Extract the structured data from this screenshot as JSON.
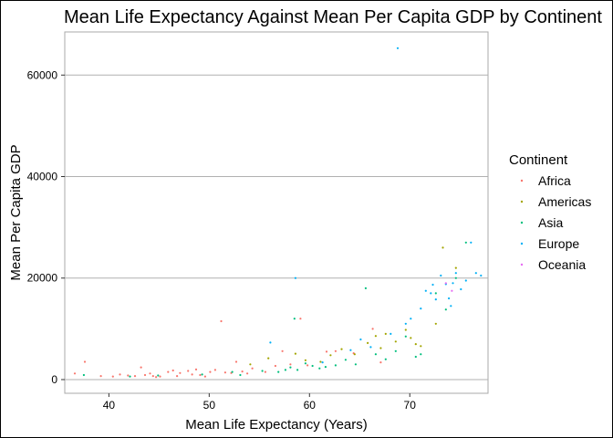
{
  "chart_data": {
    "type": "scatter",
    "title": "Mean Life Expectancy Against Mean Per Capita GDP by Continent",
    "xlabel": "Mean Life Expectancy (Years)",
    "ylabel": "Mean Per Capita GDP",
    "xlim": [
      35.6,
      77.8
    ],
    "ylim": [
      -2700,
      68500
    ],
    "x_ticks": [
      40,
      50,
      60,
      70
    ],
    "y_ticks": [
      0,
      20000,
      40000,
      60000
    ],
    "x_tick_labels": [
      "40",
      "50",
      "60",
      "70"
    ],
    "y_tick_labels": [
      "0",
      "20000",
      "40000",
      "60000"
    ],
    "grid": "horizontal",
    "legend": {
      "title": "Continent",
      "position": "right"
    },
    "series": [
      {
        "name": "Africa",
        "color": "#F8766D",
        "points": [
          [
            36.6,
            1200
          ],
          [
            37.6,
            3500
          ],
          [
            39.2,
            700
          ],
          [
            40.4,
            600
          ],
          [
            41.1,
            1000
          ],
          [
            41.9,
            800
          ],
          [
            42.6,
            700
          ],
          [
            43.2,
            2400
          ],
          [
            43.6,
            900
          ],
          [
            44.1,
            1200
          ],
          [
            44.4,
            700
          ],
          [
            44.7,
            500
          ],
          [
            45.1,
            600
          ],
          [
            45.9,
            1500
          ],
          [
            46.4,
            1800
          ],
          [
            46.8,
            700
          ],
          [
            47.1,
            1300
          ],
          [
            47.9,
            1700
          ],
          [
            48.3,
            1000
          ],
          [
            48.7,
            2000
          ],
          [
            49.1,
            900
          ],
          [
            49.6,
            600
          ],
          [
            50.1,
            1500
          ],
          [
            50.6,
            1900
          ],
          [
            51.2,
            11500
          ],
          [
            51.6,
            1400
          ],
          [
            52.2,
            1300
          ],
          [
            52.7,
            3500
          ],
          [
            53.3,
            1600
          ],
          [
            53.8,
            1200
          ],
          [
            54.3,
            2200
          ],
          [
            55.6,
            1500
          ],
          [
            56.6,
            2700
          ],
          [
            57.3,
            5600
          ],
          [
            58.1,
            3000
          ],
          [
            59.1,
            12000
          ],
          [
            59.8,
            2800
          ],
          [
            61.7,
            5500
          ],
          [
            62.6,
            5600
          ],
          [
            64.4,
            5200
          ],
          [
            66.3,
            10000
          ],
          [
            67.1,
            3400
          ]
        ]
      },
      {
        "name": "Americas",
        "color": "#A3A500",
        "points": [
          [
            54.1,
            3000
          ],
          [
            55.9,
            4200
          ],
          [
            58.6,
            5100
          ],
          [
            59.6,
            3800
          ],
          [
            61.1,
            3500
          ],
          [
            62.1,
            4800
          ],
          [
            63.2,
            6000
          ],
          [
            64.5,
            5000
          ],
          [
            65.8,
            7200
          ],
          [
            66.6,
            8600
          ],
          [
            67.1,
            6200
          ],
          [
            67.6,
            9000
          ],
          [
            68.6,
            7500
          ],
          [
            69.6,
            9800
          ],
          [
            70.1,
            8200
          ],
          [
            70.6,
            7000
          ],
          [
            71.1,
            6600
          ],
          [
            72.6,
            11000
          ],
          [
            73.3,
            26000
          ],
          [
            74.6,
            22000
          ]
        ]
      },
      {
        "name": "Asia",
        "color": "#00BF7D",
        "points": [
          [
            37.5,
            900
          ],
          [
            42.1,
            600
          ],
          [
            44.9,
            800
          ],
          [
            49.3,
            1000
          ],
          [
            52.3,
            1500
          ],
          [
            53.1,
            900
          ],
          [
            55.3,
            1700
          ],
          [
            56.9,
            1500
          ],
          [
            57.6,
            1900
          ],
          [
            58.1,
            2400
          ],
          [
            58.5,
            12000
          ],
          [
            58.8,
            1900
          ],
          [
            59.6,
            3200
          ],
          [
            60.3,
            2700
          ],
          [
            61.0,
            2200
          ],
          [
            61.6,
            2500
          ],
          [
            62.6,
            2800
          ],
          [
            63.6,
            3900
          ],
          [
            64.6,
            3000
          ],
          [
            65.6,
            18000
          ],
          [
            66.6,
            5000
          ],
          [
            67.6,
            4000
          ],
          [
            68.6,
            5600
          ],
          [
            69.6,
            8500
          ],
          [
            70.6,
            4500
          ],
          [
            71.1,
            5000
          ],
          [
            72.6,
            17000
          ],
          [
            73.6,
            13800
          ],
          [
            74.6,
            20000
          ],
          [
            75.6,
            27000
          ]
        ]
      },
      {
        "name": "Europe",
        "color": "#00B0F6",
        "points": [
          [
            56.1,
            7300
          ],
          [
            58.6,
            20000
          ],
          [
            61.3,
            3400
          ],
          [
            64.1,
            5800
          ],
          [
            65.1,
            7900
          ],
          [
            66.1,
            6400
          ],
          [
            68.1,
            9000
          ],
          [
            68.8,
            65300
          ],
          [
            69.6,
            11000
          ],
          [
            70.1,
            12000
          ],
          [
            71.1,
            14000
          ],
          [
            71.6,
            17500
          ],
          [
            72.1,
            17000
          ],
          [
            72.6,
            15800
          ],
          [
            73.1,
            20500
          ],
          [
            73.6,
            18800
          ],
          [
            74.1,
            14500
          ],
          [
            74.6,
            21000
          ],
          [
            75.1,
            17800
          ],
          [
            75.6,
            19500
          ],
          [
            76.1,
            27000
          ],
          [
            76.6,
            21000
          ],
          [
            77.1,
            20500
          ],
          [
            73.9,
            16000
          ],
          [
            74.3,
            19000
          ],
          [
            72.3,
            18700
          ]
        ]
      },
      {
        "name": "Oceania",
        "color": "#E76BF3",
        "points": [
          [
            73.6,
            19000
          ],
          [
            74.2,
            17500
          ]
        ]
      }
    ]
  }
}
